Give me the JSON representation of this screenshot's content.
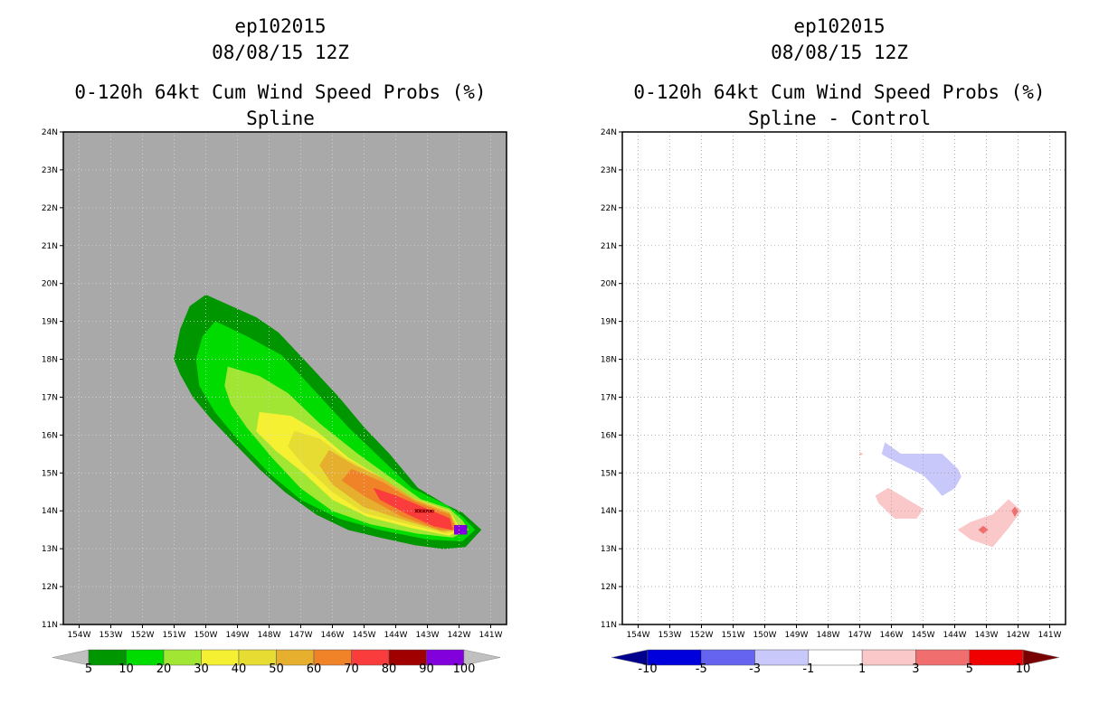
{
  "panels": [
    {
      "title_line1": "ep102015",
      "title_line2": "08/08/15 12Z",
      "title_line3": "0-120h 64kt Cum Wind Speed Probs (%)",
      "title_line4": "Spline",
      "background_color": "#a9a9a9"
    },
    {
      "title_line1": "ep102015",
      "title_line2": "08/08/15 12Z",
      "title_line3": "0-120h 64kt Cum Wind Speed Probs (%)",
      "title_line4": "Spline - Control",
      "background_color": "#ffffff"
    }
  ],
  "chart_data": [
    {
      "type": "heatmap",
      "title": "0-120h 64kt Cum Wind Speed Probs (%) - Spline",
      "x_ticks": [
        "154W",
        "153W",
        "152W",
        "151W",
        "150W",
        "149W",
        "148W",
        "147W",
        "146W",
        "145W",
        "144W",
        "143W",
        "142W",
        "141W"
      ],
      "y_ticks": [
        "11N",
        "12N",
        "13N",
        "14N",
        "15N",
        "16N",
        "17N",
        "18N",
        "19N",
        "20N",
        "21N",
        "22N",
        "23N",
        "24N"
      ],
      "xlim": [
        -154.5,
        -140.5
      ],
      "ylim": [
        11,
        24
      ],
      "colorbar": {
        "labels": [
          "5",
          "10",
          "20",
          "30",
          "40",
          "50",
          "60",
          "70",
          "80",
          "90",
          "100"
        ],
        "colors": [
          "#009600",
          "#00dc00",
          "#a0e632",
          "#f5f032",
          "#e6dc32",
          "#e6af2d",
          "#f08228",
          "#fa3c3c",
          "#a00000",
          "#8200dc"
        ],
        "end_low": "#c0c0c0",
        "end_high": "#c0c0c0"
      },
      "contours": [
        {
          "level": 5,
          "color": "#009600",
          "points": [
            [
              -150,
              19.7
            ],
            [
              -149.2,
              19.4
            ],
            [
              -148.4,
              19.1
            ],
            [
              -147.7,
              18.7
            ],
            [
              -146.8,
              17.9
            ],
            [
              -145.8,
              17
            ],
            [
              -145,
              16.2
            ],
            [
              -144.2,
              15.5
            ],
            [
              -143.3,
              14.6
            ],
            [
              -142.4,
              14.15
            ],
            [
              -141.9,
              13.95
            ],
            [
              -141.3,
              13.5
            ],
            [
              -141.8,
              13.05
            ],
            [
              -142.5,
              13.0
            ],
            [
              -143.4,
              13.1
            ],
            [
              -144.5,
              13.3
            ],
            [
              -145.5,
              13.5
            ],
            [
              -146.5,
              13.9
            ],
            [
              -147.5,
              14.5
            ],
            [
              -148.3,
              15.1
            ],
            [
              -149,
              15.7
            ],
            [
              -149.8,
              16.4
            ],
            [
              -150.4,
              17.0
            ],
            [
              -150.8,
              17.6
            ],
            [
              -151.0,
              18.0
            ],
            [
              -150.8,
              18.8
            ],
            [
              -150.5,
              19.4
            ]
          ]
        },
        {
          "level": 10,
          "color": "#00dc00",
          "points": [
            [
              -149.7,
              19
            ],
            [
              -148.7,
              18.6
            ],
            [
              -147.6,
              18.1
            ],
            [
              -146.6,
              17.2
            ],
            [
              -145.5,
              16.2
            ],
            [
              -144.5,
              15.4
            ],
            [
              -143.5,
              14.6
            ],
            [
              -142.4,
              14.15
            ],
            [
              -141.9,
              13.85
            ],
            [
              -141.5,
              13.5
            ],
            [
              -141.9,
              13.2
            ],
            [
              -143,
              13.25
            ],
            [
              -144.5,
              13.5
            ],
            [
              -145.8,
              13.8
            ],
            [
              -147,
              14.3
            ],
            [
              -148,
              15
            ],
            [
              -148.9,
              15.8
            ],
            [
              -149.7,
              16.6
            ],
            [
              -150.2,
              17.3
            ],
            [
              -150.3,
              18.0
            ],
            [
              -150.1,
              18.6
            ]
          ]
        },
        {
          "level": 20,
          "color": "#a0e632",
          "points": [
            [
              -149.3,
              17.8
            ],
            [
              -148.3,
              17.55
            ],
            [
              -147.4,
              17.1
            ],
            [
              -146.4,
              16.3
            ],
            [
              -145.2,
              15.5
            ],
            [
              -144.2,
              14.9
            ],
            [
              -143.2,
              14.3
            ],
            [
              -142.3,
              14.05
            ],
            [
              -141.9,
              13.75
            ],
            [
              -141.7,
              13.5
            ],
            [
              -142.2,
              13.3
            ],
            [
              -143.3,
              13.4
            ],
            [
              -144.8,
              13.65
            ],
            [
              -146,
              14
            ],
            [
              -147,
              14.6
            ],
            [
              -147.9,
              15.4
            ],
            [
              -148.7,
              16.2
            ],
            [
              -149.2,
              16.8
            ],
            [
              -149.4,
              17.3
            ]
          ]
        },
        {
          "level": 30,
          "color": "#f5f032",
          "points": [
            [
              -148.3,
              16.6
            ],
            [
              -147.3,
              16.5
            ],
            [
              -146.5,
              16.1
            ],
            [
              -145.5,
              15.4
            ],
            [
              -144.5,
              14.9
            ],
            [
              -143.4,
              14.3
            ],
            [
              -142.3,
              14.0
            ],
            [
              -141.95,
              13.5
            ],
            [
              -142.3,
              13.35
            ],
            [
              -143.5,
              13.55
            ],
            [
              -144.9,
              13.85
            ],
            [
              -146,
              14.3
            ],
            [
              -146.9,
              15
            ],
            [
              -147.8,
              15.6
            ],
            [
              -148.4,
              16.1
            ]
          ]
        },
        {
          "level": 40,
          "color": "#e6dc32",
          "points": [
            [
              -147.2,
              16.1
            ],
            [
              -146.4,
              15.9
            ],
            [
              -145.6,
              15.4
            ],
            [
              -144.6,
              14.95
            ],
            [
              -143.5,
              14.35
            ],
            [
              -142.3,
              14.0
            ],
            [
              -142.0,
              13.5
            ],
            [
              -142.4,
              13.4
            ],
            [
              -143.6,
              13.65
            ],
            [
              -145,
              13.95
            ],
            [
              -146,
              14.5
            ],
            [
              -146.9,
              15.2
            ],
            [
              -147.4,
              15.7
            ]
          ]
        },
        {
          "level": 50,
          "color": "#e6af2d",
          "points": [
            [
              -146.1,
              15.6
            ],
            [
              -145.3,
              15.2
            ],
            [
              -144.4,
              14.85
            ],
            [
              -143.4,
              14.3
            ],
            [
              -142.3,
              13.95
            ],
            [
              -142.05,
              13.5
            ],
            [
              -142.5,
              13.45
            ],
            [
              -143.7,
              13.75
            ],
            [
              -145,
              14.1
            ],
            [
              -146,
              14.7
            ],
            [
              -146.4,
              15.2
            ]
          ]
        },
        {
          "level": 60,
          "color": "#f08228",
          "points": [
            [
              -145.4,
              15.1
            ],
            [
              -144.4,
              14.75
            ],
            [
              -143.4,
              14.25
            ],
            [
              -142.3,
              13.9
            ],
            [
              -142.1,
              13.5
            ],
            [
              -142.6,
              13.5
            ],
            [
              -143.8,
              13.85
            ],
            [
              -145,
              14.4
            ],
            [
              -145.7,
              14.8
            ]
          ]
        },
        {
          "level": 70,
          "color": "#fa3c3c",
          "points": [
            [
              -144.7,
              14.6
            ],
            [
              -144.0,
              14.4
            ],
            [
              -143.3,
              14.15
            ],
            [
              -142.3,
              13.8
            ],
            [
              -142.2,
              13.5
            ],
            [
              -142.8,
              13.6
            ],
            [
              -143.6,
              13.9
            ],
            [
              -144.5,
              14.3
            ]
          ]
        },
        {
          "level": 80,
          "color": "#a00000",
          "points": [
            [
              -143.4,
              14.04
            ],
            [
              -142.8,
              14.02
            ],
            [
              -142.8,
              13.96
            ],
            [
              -143.4,
              13.96
            ]
          ]
        },
        {
          "level": 90,
          "color": "#8200dc",
          "points": [
            [
              -142.15,
              13.62
            ],
            [
              -141.75,
              13.62
            ],
            [
              -141.75,
              13.38
            ],
            [
              -142.15,
              13.38
            ]
          ]
        }
      ],
      "grid": true
    },
    {
      "type": "heatmap",
      "title": "0-120h 64kt Cum Wind Speed Probs (%) - Spline - Control",
      "x_ticks": [
        "154W",
        "153W",
        "152W",
        "151W",
        "150W",
        "149W",
        "148W",
        "147W",
        "146W",
        "145W",
        "144W",
        "143W",
        "142W",
        "141W"
      ],
      "y_ticks": [
        "11N",
        "12N",
        "13N",
        "14N",
        "15N",
        "16N",
        "17N",
        "18N",
        "19N",
        "20N",
        "21N",
        "22N",
        "23N",
        "24N"
      ],
      "xlim": [
        -154.5,
        -140.5
      ],
      "ylim": [
        11,
        24
      ],
      "colorbar": {
        "labels": [
          "-10",
          "-5",
          "-3",
          "-1",
          "1",
          "3",
          "5",
          "10"
        ],
        "colors": [
          "#0000dc",
          "#6464f0",
          "#c8c8fa",
          "#ffffff",
          "#fac8c8",
          "#f06e6e",
          "#f00000"
        ],
        "end_low": "#00008c",
        "end_high": "#780000"
      },
      "contours": [
        {
          "level": -3,
          "color": "#c8c8fa",
          "points": [
            [
              -146.2,
              15.8
            ],
            [
              -145.7,
              15.5
            ],
            [
              -145,
              15.5
            ],
            [
              -144.4,
              15.5
            ],
            [
              -143.9,
              15.1
            ],
            [
              -143.8,
              14.9
            ],
            [
              -144,
              14.6
            ],
            [
              -144.4,
              14.4
            ],
            [
              -144.6,
              14.6
            ],
            [
              -145,
              14.95
            ],
            [
              -145.5,
              15.15
            ],
            [
              -146.1,
              15.4
            ],
            [
              -146.3,
              15.5
            ]
          ]
        },
        {
          "level": 1,
          "color": "#fac8c8",
          "points": [
            [
              -146.1,
              14.6
            ],
            [
              -145.4,
              14.25
            ],
            [
              -145,
              14.05
            ],
            [
              -145.2,
              13.8
            ],
            [
              -145.9,
              13.8
            ],
            [
              -146.4,
              14.2
            ],
            [
              -146.5,
              14.4
            ]
          ]
        },
        {
          "level": 1,
          "color": "#fac8c8",
          "points": [
            [
              -142.3,
              14.3
            ],
            [
              -141.9,
              14.0
            ],
            [
              -142.3,
              13.55
            ],
            [
              -142.8,
              13.05
            ],
            [
              -143.5,
              13.25
            ],
            [
              -143.9,
              13.5
            ],
            [
              -143.5,
              13.7
            ],
            [
              -142.8,
              13.9
            ]
          ]
        },
        {
          "level": 3,
          "color": "#f06e6e",
          "points": [
            [
              -142.1,
              14.1
            ],
            [
              -142.0,
              14.0
            ],
            [
              -142.1,
              13.85
            ],
            [
              -142.2,
              14.0
            ]
          ]
        },
        {
          "level": 3,
          "color": "#f06e6e",
          "points": [
            [
              -143.1,
              13.6
            ],
            [
              -142.95,
              13.5
            ],
            [
              -143.1,
              13.4
            ],
            [
              -143.25,
              13.5
            ]
          ]
        },
        {
          "level": 1,
          "color": "#fac8c8",
          "points": [
            [
              -147.0,
              15.55
            ],
            [
              -146.9,
              15.5
            ],
            [
              -147.0,
              15.45
            ]
          ]
        }
      ],
      "grid": true
    }
  ]
}
